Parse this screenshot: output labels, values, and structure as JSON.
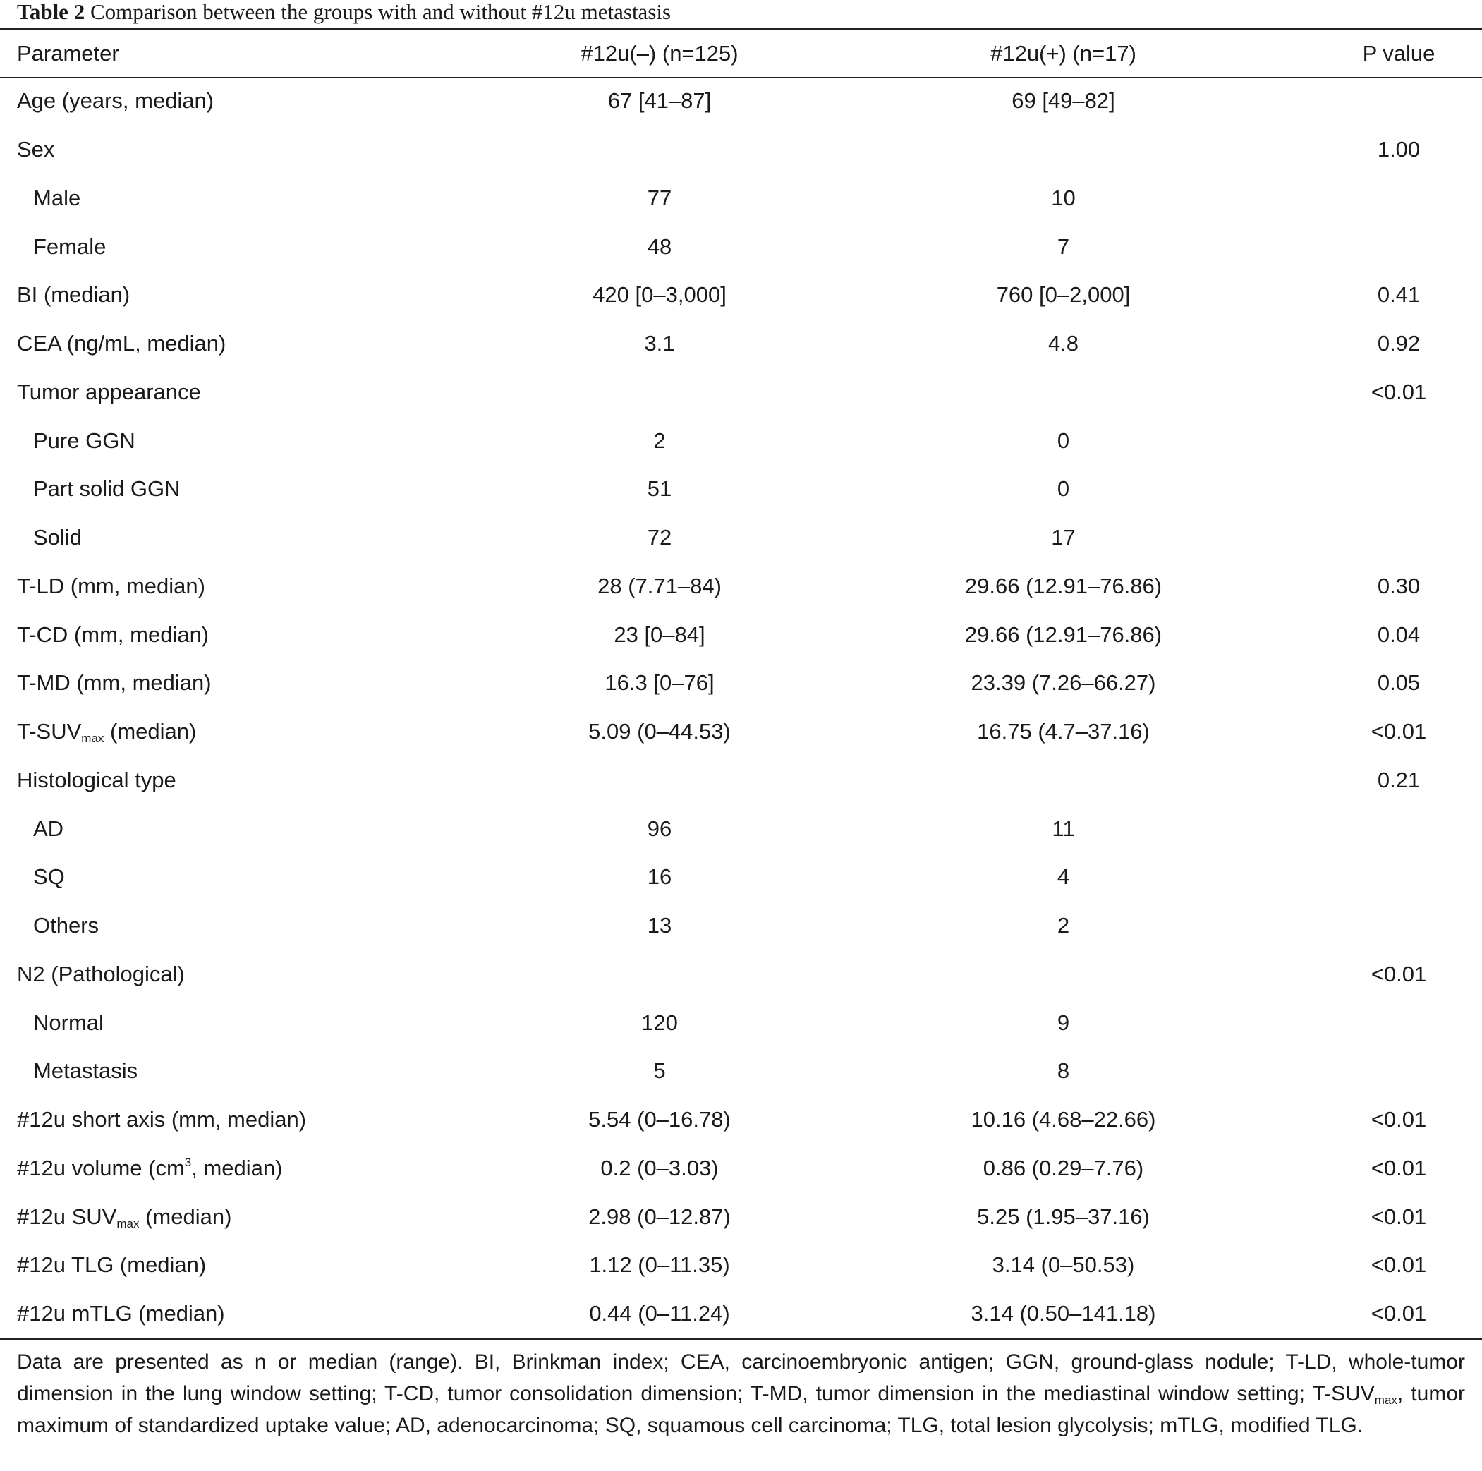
{
  "title": {
    "label": "Table 2",
    "text": "Comparison between the groups with and without #12u metastasis"
  },
  "table": {
    "headers": [
      "Parameter",
      "#12u(–) (n=125)",
      "#12u(+) (n=17)",
      "P value"
    ],
    "rows": [
      {
        "param": "Age (years, median)",
        "neg": "67 [41–87]",
        "pos": "69 [49–82]",
        "p": ""
      },
      {
        "param": "Sex",
        "neg": "",
        "pos": "",
        "p": "1.00"
      },
      {
        "param": "Male",
        "neg": "77",
        "pos": "10",
        "p": ""
      },
      {
        "param": "Female",
        "neg": "48",
        "pos": "7",
        "p": ""
      },
      {
        "param": "BI (median)",
        "neg": "420 [0–3,000]",
        "pos": "760 [0–2,000]",
        "p": "0.41"
      },
      {
        "param": "CEA (ng/mL, median)",
        "neg": "3.1",
        "pos": "4.8",
        "p": "0.92"
      },
      {
        "param": "Tumor appearance",
        "neg": "",
        "pos": "",
        "p": "<0.01"
      },
      {
        "param": "Pure GGN",
        "neg": "2",
        "pos": "0",
        "p": ""
      },
      {
        "param": "Part solid GGN",
        "neg": "51",
        "pos": "0",
        "p": ""
      },
      {
        "param": "Solid",
        "neg": "72",
        "pos": "17",
        "p": ""
      },
      {
        "param": "T-LD (mm, median)",
        "neg": "28 (7.71–84)",
        "pos": "29.66 (12.91–76.86)",
        "p": "0.30"
      },
      {
        "param": "T-CD (mm, median)",
        "neg": "23 [0–84]",
        "pos": "29.66 (12.91–76.86)",
        "p": "0.04"
      },
      {
        "param": "T-MD (mm, median)",
        "neg": "16.3 [0–76]",
        "pos": "23.39 (7.26–66.27)",
        "p": "0.05"
      },
      {
        "param_a": "T-SUV",
        "param_sub": "max",
        "param_b": " (median)",
        "neg": "5.09 (0–44.53)",
        "pos": "16.75 (4.7–37.16)",
        "p": "<0.01"
      },
      {
        "param": "Histological type",
        "neg": "",
        "pos": "",
        "p": "0.21"
      },
      {
        "param": "AD",
        "neg": "96",
        "pos": "11",
        "p": ""
      },
      {
        "param": "SQ",
        "neg": "16",
        "pos": "4",
        "p": ""
      },
      {
        "param": "Others",
        "neg": "13",
        "pos": "2",
        "p": ""
      },
      {
        "param": "N2 (Pathological)",
        "neg": "",
        "pos": "",
        "p": "<0.01"
      },
      {
        "param": "Normal",
        "neg": "120",
        "pos": "9",
        "p": ""
      },
      {
        "param": "Metastasis",
        "neg": "5",
        "pos": "8",
        "p": ""
      },
      {
        "param": "#12u short axis (mm, median)",
        "neg": "5.54 (0–16.78)",
        "pos": "10.16 (4.68–22.66)",
        "p": "<0.01"
      },
      {
        "param_a": "#12u volume (cm",
        "param_sup": "3",
        "param_b": ", median)",
        "neg": "0.2 (0–3.03)",
        "pos": "0.86 (0.29–7.76)",
        "p": "<0.01"
      },
      {
        "param_a": "#12u SUV",
        "param_sub": "max",
        "param_b": " (median)",
        "neg": "2.98 (0–12.87)",
        "pos": "5.25 (1.95–37.16)",
        "p": "<0.01"
      },
      {
        "param": "#12u TLG (median)",
        "neg": "1.12 (0–11.35)",
        "pos": "3.14 (0–50.53)",
        "p": "<0.01"
      },
      {
        "param": "#12u mTLG (median)",
        "neg": "0.44 (0–11.24)",
        "pos": "3.14 (0.50–141.18)",
        "p": "<0.01"
      }
    ]
  },
  "footnote": {
    "part1": "Data are presented as n or median (range). BI, Brinkman index; CEA, carcinoembryonic antigen; GGN, ground-glass nodule; T-LD, whole-tumor dimension in the lung window setting; T-CD, tumor consolidation dimension; T-MD, tumor dimension in the mediastinal window setting; T-SUV",
    "sub": "max",
    "part2": ", tumor maximum of standardized uptake value; AD, adenocarcinoma; SQ, squamous cell carcinoma; TLG, total lesion glycolysis; mTLG, modified TLG."
  }
}
